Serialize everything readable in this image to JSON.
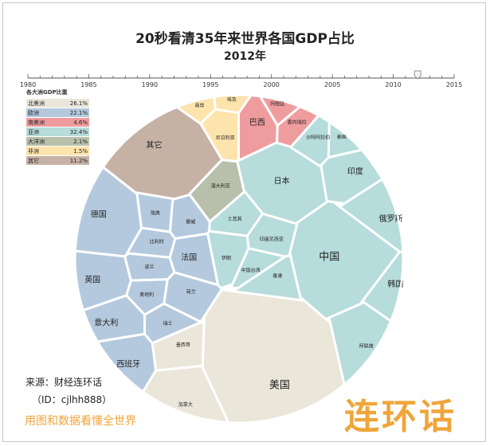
{
  "chart_data": {
    "type": "voronoi-treemap",
    "title": "20秒看清35年来世界各国GDP占比",
    "subtitle": "2012年",
    "timeline": {
      "ticks": [
        "1980",
        "1985",
        "1990",
        "1995",
        "2000",
        "2005",
        "2010",
        "2015"
      ],
      "min": 1980,
      "max": 2015,
      "current": 2012
    },
    "legend_title": "各大洲GDP比重",
    "continents": [
      {
        "name": "北美洲",
        "value": "26.1%",
        "color": "#eae6da"
      },
      {
        "name": "欧洲",
        "value": "22.1%",
        "color": "#b4c9dd"
      },
      {
        "name": "南美洲",
        "value": "4.6%",
        "color": "#ef9c9e"
      },
      {
        "name": "亚洲",
        "value": "32.4%",
        "color": "#b6dcdb"
      },
      {
        "name": "大洋洲",
        "value": "2.1%",
        "color": "#b8c0ab"
      },
      {
        "name": "非洲",
        "value": "1.5%",
        "color": "#fde3ac"
      },
      {
        "name": "其它",
        "value": "11.2%",
        "color": "#c6b2a5"
      }
    ],
    "countries": [
      {
        "name": "美国",
        "continent": "北美洲"
      },
      {
        "name": "加拿大",
        "continent": "北美洲"
      },
      {
        "name": "墨西哥",
        "continent": "北美洲"
      },
      {
        "name": "德国",
        "continent": "欧洲"
      },
      {
        "name": "英国",
        "continent": "欧洲"
      },
      {
        "name": "法国",
        "continent": "欧洲"
      },
      {
        "name": "意大利",
        "continent": "欧洲"
      },
      {
        "name": "西班牙",
        "continent": "欧洲"
      },
      {
        "name": "荷兰",
        "continent": "欧洲"
      },
      {
        "name": "瑞士",
        "continent": "欧洲"
      },
      {
        "name": "瑞典",
        "continent": "欧洲"
      },
      {
        "name": "波兰",
        "continent": "欧洲"
      },
      {
        "name": "比利时",
        "continent": "欧洲"
      },
      {
        "name": "挪威",
        "continent": "欧洲"
      },
      {
        "name": "奥地利",
        "continent": "欧洲"
      },
      {
        "name": "巴西",
        "continent": "南美洲"
      },
      {
        "name": "阿根廷",
        "continent": "南美洲"
      },
      {
        "name": "委内瑞拉",
        "continent": "南美洲"
      },
      {
        "name": "中国",
        "continent": "亚洲"
      },
      {
        "name": "日本",
        "continent": "亚洲"
      },
      {
        "name": "印度",
        "continent": "亚洲"
      },
      {
        "name": "俄罗斯",
        "continent": "亚洲"
      },
      {
        "name": "韩国",
        "continent": "亚洲"
      },
      {
        "name": "印度尼西亚",
        "continent": "亚洲"
      },
      {
        "name": "土耳其",
        "continent": "亚洲"
      },
      {
        "name": "沙特阿拉伯",
        "continent": "亚洲"
      },
      {
        "name": "泰国",
        "continent": "亚洲"
      },
      {
        "name": "伊朗",
        "continent": "亚洲"
      },
      {
        "name": "中国台湾",
        "continent": "亚洲"
      },
      {
        "name": "阿联酋",
        "continent": "亚洲"
      },
      {
        "name": "香港",
        "continent": "亚洲"
      },
      {
        "name": "澳大利亚",
        "continent": "大洋洲"
      },
      {
        "name": "南非",
        "continent": "非洲"
      },
      {
        "name": "埃及",
        "continent": "非洲"
      },
      {
        "name": "尼日利亚",
        "continent": "非洲"
      },
      {
        "name": "其它",
        "continent": "其它"
      }
    ]
  },
  "footer": {
    "source": "来源：财经连环话",
    "source_id": "（ID：cjlhh888）",
    "slogan": "用图和数据看懂全世界",
    "brand": "连环话"
  }
}
